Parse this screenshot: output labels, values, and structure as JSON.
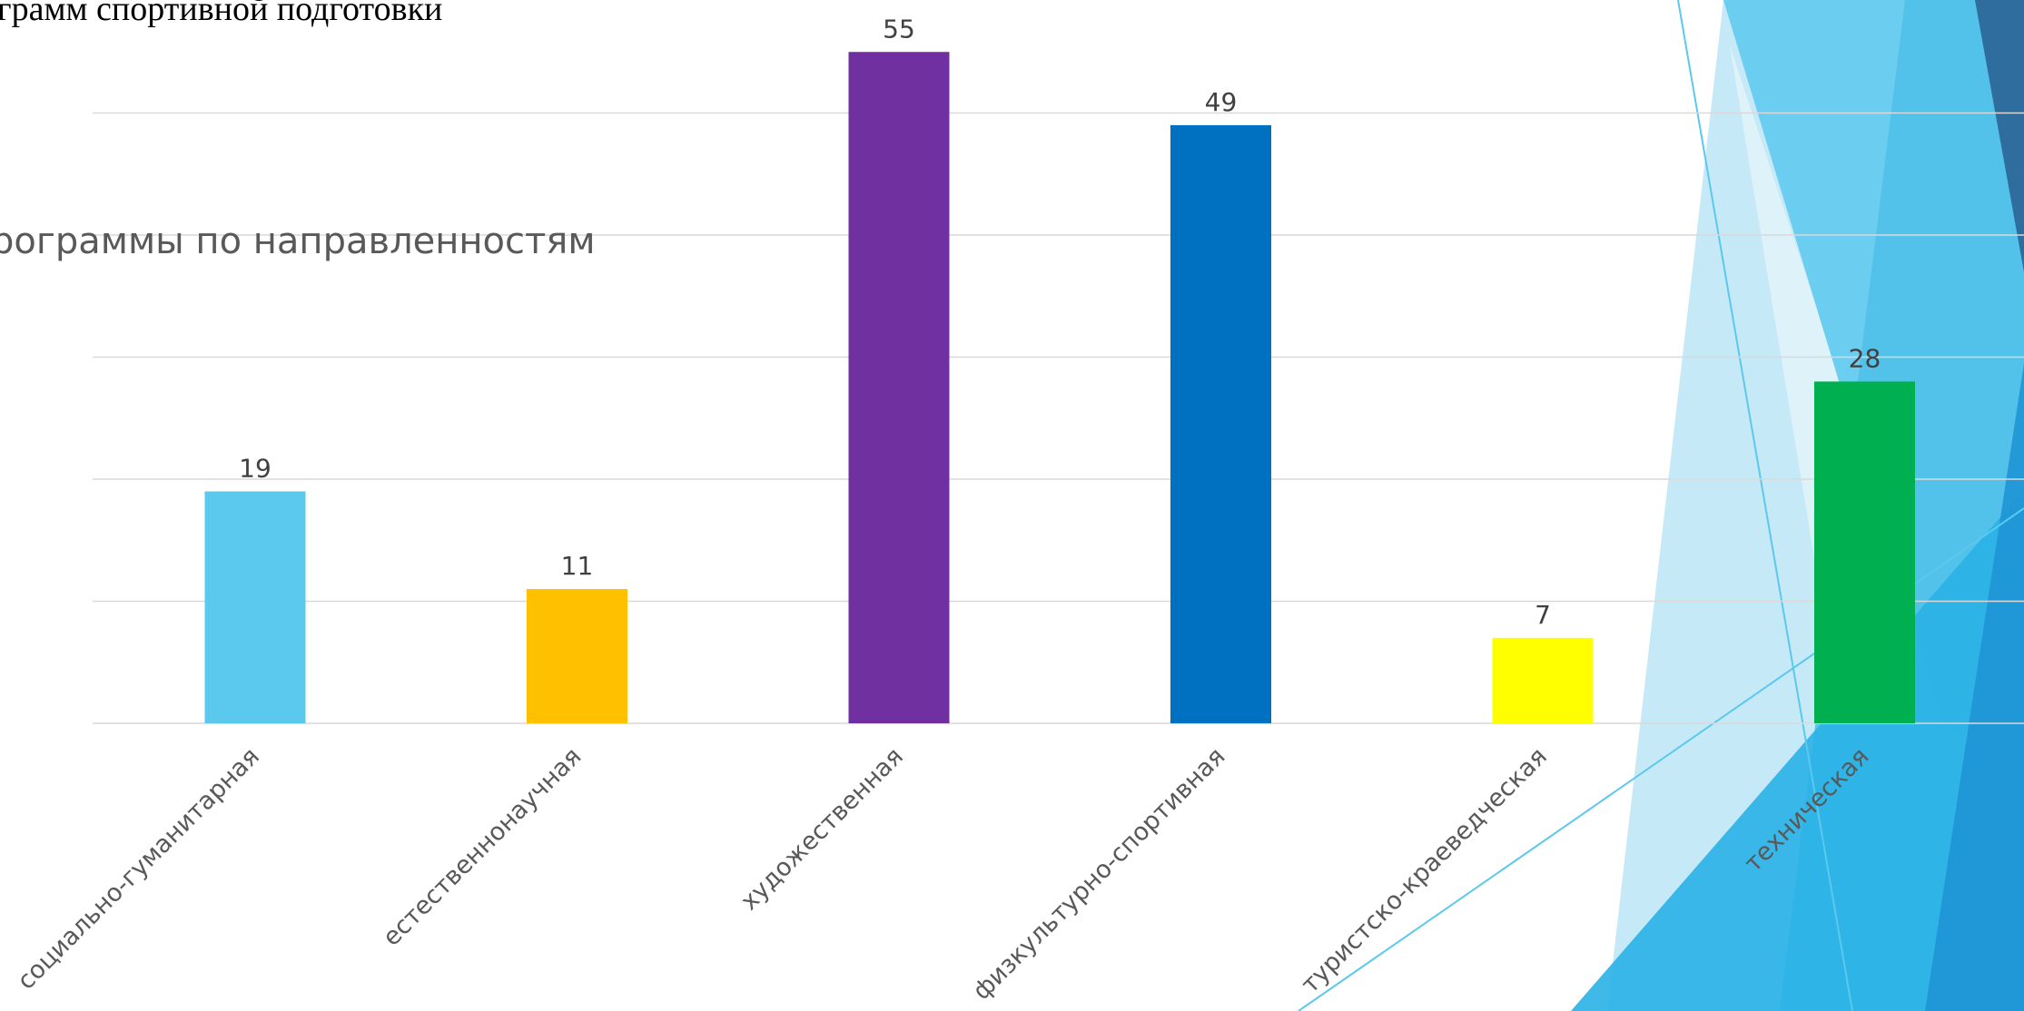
{
  "slide": {
    "heading": "грамм спортивной подготовки"
  },
  "colors": {
    "background": "#ffffff",
    "gridline": "#d9d9d9",
    "label_text": "#595959",
    "decor_light": "#c6e9f7",
    "decor_mid": "#5bc8ee",
    "decor_bright": "#29b1e6",
    "decor_dark": "#2e6d9e"
  },
  "chart_data": {
    "type": "bar",
    "title": "рограммы по направленностям",
    "categories": [
      "социально-гуманитарная",
      "естественнонаучная",
      "художественная",
      "физкультурно-спортивная",
      "туристско-краеведческая",
      "техническая"
    ],
    "values": [
      19,
      11,
      55,
      49,
      7,
      28
    ],
    "bar_colors": [
      "#5bc8ee",
      "#ffc000",
      "#7030a0",
      "#0070c0",
      "#ffff00",
      "#00b050"
    ],
    "data_labels": [
      "19",
      "11",
      "55",
      "49",
      "7",
      "28"
    ],
    "ylim": [
      0,
      55
    ],
    "gridlines": [
      0,
      10,
      20,
      30,
      40,
      50
    ],
    "grid": true,
    "legend": "none"
  }
}
